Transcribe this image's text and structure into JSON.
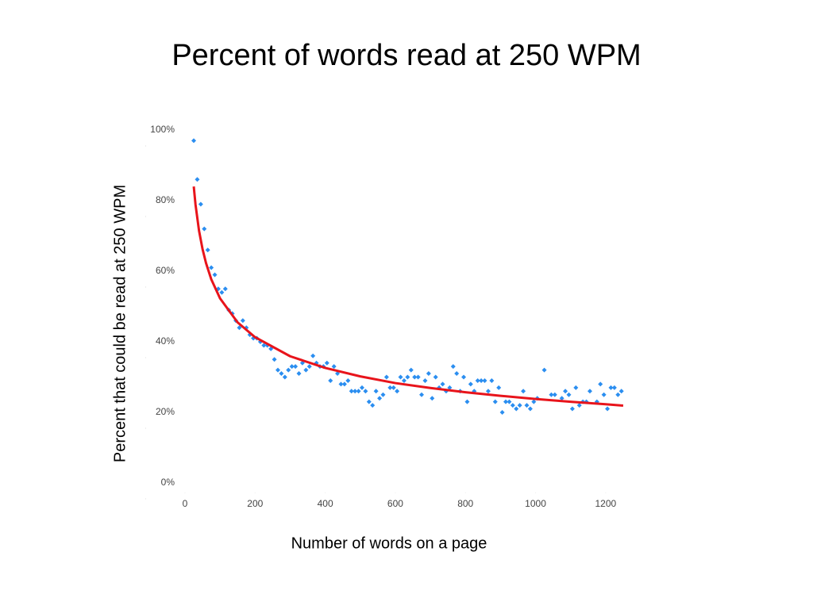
{
  "chart_data": {
    "type": "scatter",
    "title": "Percent of words read at 250 WPM",
    "x_label": "Number of words on a page",
    "y_label": "Percent that could be read at 250 WPM",
    "xlim": [
      0,
      1300
    ],
    "ylim": [
      0,
      100
    ],
    "xticks": [
      0,
      200,
      400,
      600,
      800,
      1000,
      1200
    ],
    "yticks": [
      {
        "value": 0,
        "label": "0%"
      },
      {
        "value": 20,
        "label": "20%"
      },
      {
        "value": 40,
        "label": "40%"
      },
      {
        "value": 60,
        "label": "60%"
      },
      {
        "value": 80,
        "label": "80%"
      },
      {
        "value": 100,
        "label": "100%"
      }
    ],
    "grid": false,
    "series": [
      {
        "type": "scatter",
        "color": "#2b8ef0",
        "x": [
          25,
          35,
          45,
          55,
          65,
          75,
          85,
          95,
          105,
          115,
          125,
          135,
          145,
          155,
          165,
          175,
          185,
          195,
          205,
          215,
          225,
          235,
          245,
          255,
          265,
          275,
          285,
          295,
          305,
          315,
          325,
          335,
          345,
          355,
          365,
          375,
          385,
          395,
          405,
          415,
          425,
          435,
          445,
          455,
          465,
          475,
          485,
          495,
          505,
          515,
          525,
          535,
          545,
          555,
          565,
          575,
          585,
          595,
          605,
          615,
          625,
          635,
          645,
          655,
          665,
          675,
          685,
          695,
          705,
          715,
          725,
          735,
          745,
          755,
          765,
          775,
          785,
          795,
          805,
          815,
          825,
          835,
          845,
          855,
          865,
          875,
          885,
          895,
          905,
          915,
          925,
          935,
          945,
          955,
          965,
          975,
          985,
          995,
          1005,
          1025,
          1045,
          1055,
          1075,
          1085,
          1095,
          1105,
          1115,
          1125,
          1135,
          1145,
          1155,
          1175,
          1185,
          1195,
          1205,
          1215,
          1225,
          1235,
          1245
        ],
        "values": [
          97,
          86,
          79,
          72,
          66,
          61,
          59,
          55,
          54,
          55,
          49,
          48,
          46,
          44,
          46,
          44,
          42,
          41,
          41,
          40,
          39,
          39,
          38,
          35,
          32,
          31,
          30,
          32,
          33,
          33,
          31,
          34,
          32,
          33,
          36,
          34,
          33,
          33,
          34,
          29,
          33,
          31,
          28,
          28,
          29,
          26,
          26,
          26,
          27,
          26,
          23,
          22,
          26,
          24,
          25,
          30,
          27,
          27,
          26,
          30,
          29,
          30,
          32,
          30,
          30,
          25,
          29,
          31,
          24,
          30,
          27,
          28,
          26,
          27,
          33,
          31,
          26,
          30,
          23,
          28,
          26,
          29,
          29,
          29,
          26,
          29,
          23,
          27,
          20,
          23,
          23,
          22,
          21,
          22,
          26,
          22,
          21,
          23,
          24,
          32,
          25,
          25,
          24,
          26,
          25,
          21,
          27,
          22,
          23,
          23,
          26,
          23,
          28,
          25,
          21,
          27,
          27,
          25,
          26
        ]
      },
      {
        "type": "line",
        "color": "#e8141b",
        "x": [
          25,
          30,
          40,
          50,
          60,
          75,
          100,
          150,
          200,
          300,
          400,
          500,
          600,
          700,
          800,
          900,
          1000,
          1100,
          1200,
          1250
        ],
        "values": [
          84,
          78.9,
          71.5,
          66.3,
          62.3,
          57.7,
          52.3,
          45.5,
          41.3,
          35.9,
          32.6,
          30.2,
          28.3,
          26.9,
          25.7,
          24.7,
          23.8,
          23.0,
          22.3,
          21.9
        ]
      }
    ]
  }
}
